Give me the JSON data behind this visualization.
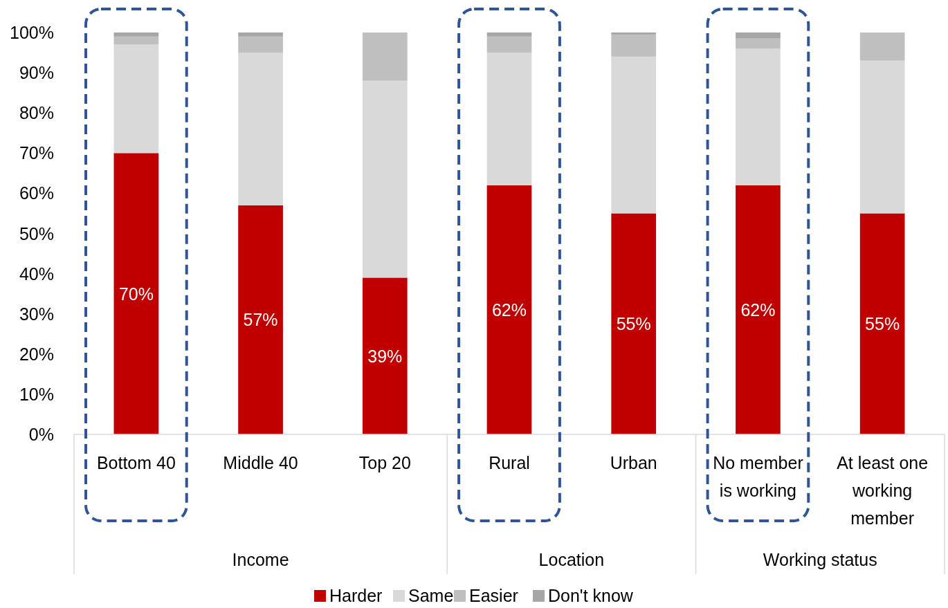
{
  "chart_data": {
    "type": "bar",
    "stacked": true,
    "categories": [
      "Bottom 40",
      "Middle 40",
      "Top 20",
      "Rural",
      "Urban",
      "No member is working",
      "At least one working member"
    ],
    "series": [
      {
        "name": "Harder",
        "color": "#c00000",
        "values": [
          70,
          57,
          39,
          62,
          55,
          62,
          55
        ],
        "value_labels": [
          "70%",
          "57%",
          "39%",
          "62%",
          "55%",
          "62%",
          "55%"
        ]
      },
      {
        "name": "Same",
        "color": "#d9d9d9",
        "values": [
          27,
          38,
          49,
          33,
          39,
          34,
          38
        ]
      },
      {
        "name": "Easier",
        "color": "#bfbfbf",
        "values": [
          2,
          4,
          12,
          4,
          5.5,
          2.5,
          7
        ]
      },
      {
        "name": "Don't know",
        "color": "#a6a6a6",
        "values": [
          1,
          1,
          0,
          1,
          0.5,
          1.5,
          0
        ]
      }
    ],
    "ylim": [
      0,
      100
    ],
    "yticks": [
      {
        "value": 0,
        "label": "0%"
      },
      {
        "value": 10,
        "label": "10%"
      },
      {
        "value": 20,
        "label": "20%"
      },
      {
        "value": 30,
        "label": "30%"
      },
      {
        "value": 40,
        "label": "40%"
      },
      {
        "value": 50,
        "label": "50%"
      },
      {
        "value": 60,
        "label": "60%"
      },
      {
        "value": 70,
        "label": "70%"
      },
      {
        "value": 80,
        "label": "80%"
      },
      {
        "value": 90,
        "label": "90%"
      },
      {
        "value": 100,
        "label": "100%"
      }
    ],
    "annotations": [
      "Income",
      "Location",
      "Working status"
    ],
    "grid": false,
    "legend": "bottom"
  }
}
